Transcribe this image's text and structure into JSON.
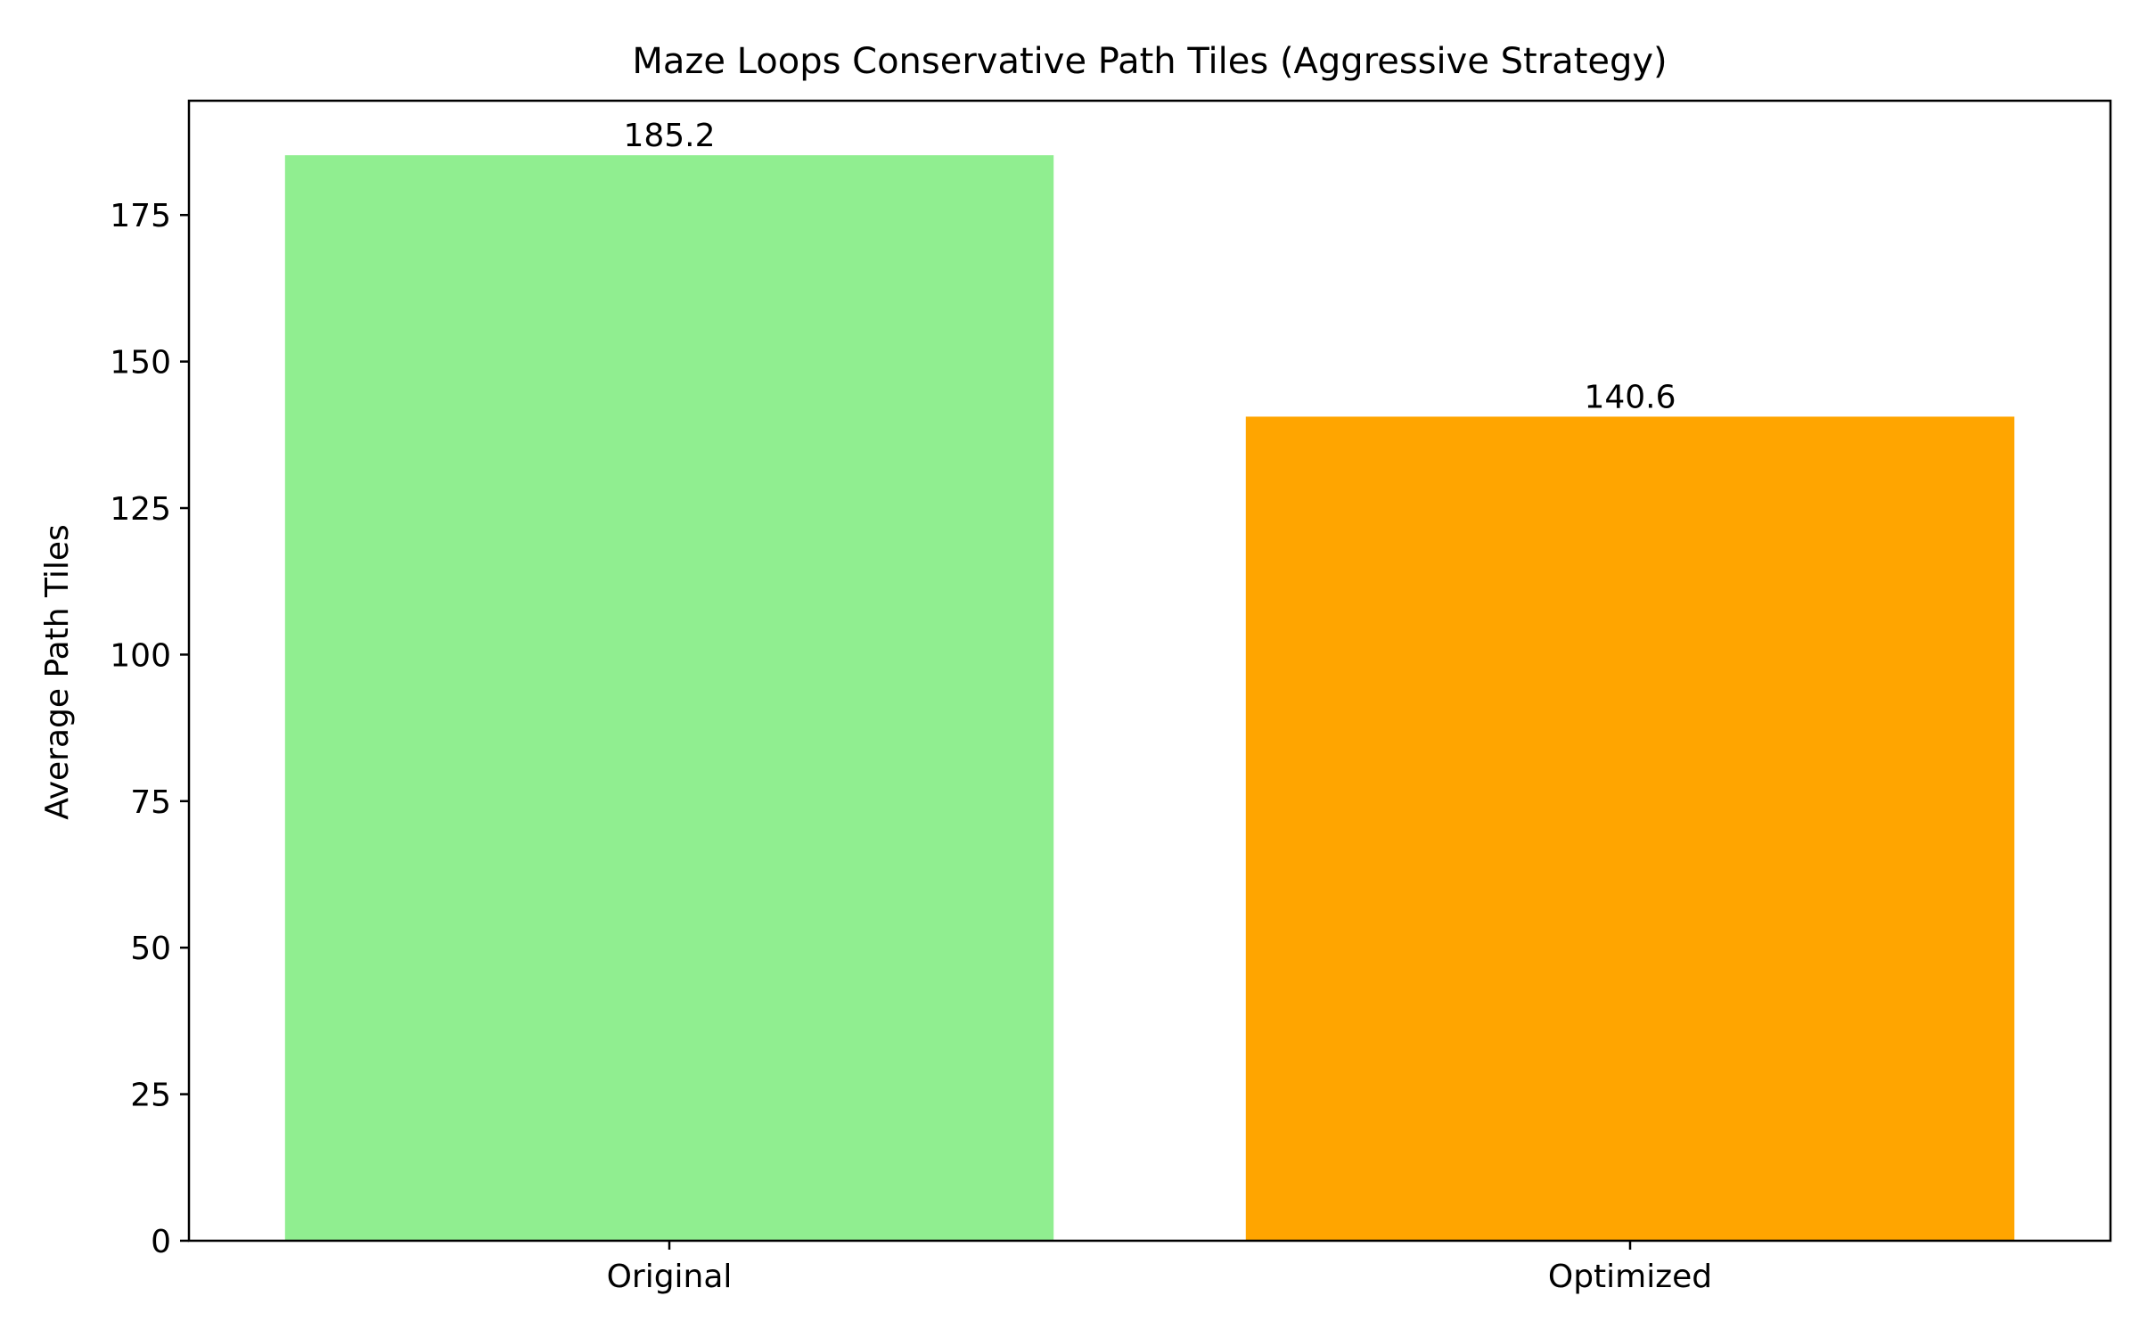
{
  "chart_data": {
    "type": "bar",
    "title": "Maze Loops Conservative Path Tiles (Aggressive Strategy)",
    "xlabel": "",
    "ylabel": "Average Path Tiles",
    "categories": [
      "Original",
      "Optimized"
    ],
    "values": [
      185.2,
      140.6
    ],
    "value_labels": [
      "185.2",
      "140.6"
    ],
    "colors": [
      "#90EE90",
      "#FFA500"
    ],
    "ylim": [
      0,
      194.5
    ],
    "yticks": [
      0,
      25,
      50,
      75,
      100,
      125,
      150,
      175
    ],
    "ytick_labels": [
      "0",
      "25",
      "50",
      "75",
      "100",
      "125",
      "150",
      "175"
    ],
    "grid": false,
    "legend": "none"
  }
}
